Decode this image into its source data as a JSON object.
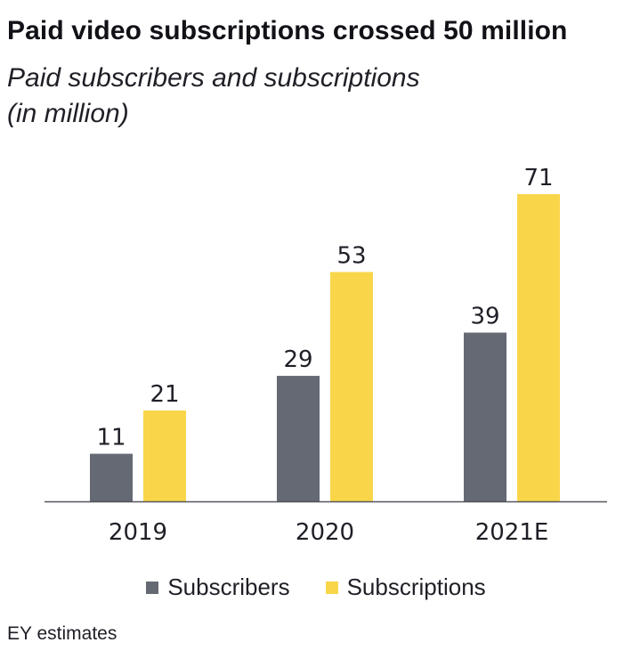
{
  "header": {
    "title": "Paid video subscriptions crossed 50 million",
    "subtitle_line1": "Paid subscribers and subscriptions",
    "subtitle_line2": "(in million)"
  },
  "colors": {
    "subscribers": "#646973",
    "subscriptions": "#f9d649",
    "axis": "#55565e",
    "text": "#1f1f27"
  },
  "chart_data": {
    "type": "bar",
    "title": "Paid video subscriptions crossed 50 million",
    "subtitle": "Paid subscribers and subscriptions (in million)",
    "categories": [
      "2019",
      "2020",
      "2021E"
    ],
    "series": [
      {
        "name": "Subscribers",
        "values": [
          11,
          29,
          39
        ]
      },
      {
        "name": "Subscriptions",
        "values": [
          21,
          53,
          71
        ]
      }
    ],
    "xlabel": "",
    "ylabel": "",
    "ylim": [
      0,
      71
    ],
    "grid": false,
    "legend": "bottom-center"
  },
  "legend": {
    "items": [
      {
        "label": "Subscribers",
        "color": "#646973"
      },
      {
        "label": "Subscriptions",
        "color": "#f9d649"
      }
    ]
  },
  "footer": {
    "source": "EY estimates"
  }
}
